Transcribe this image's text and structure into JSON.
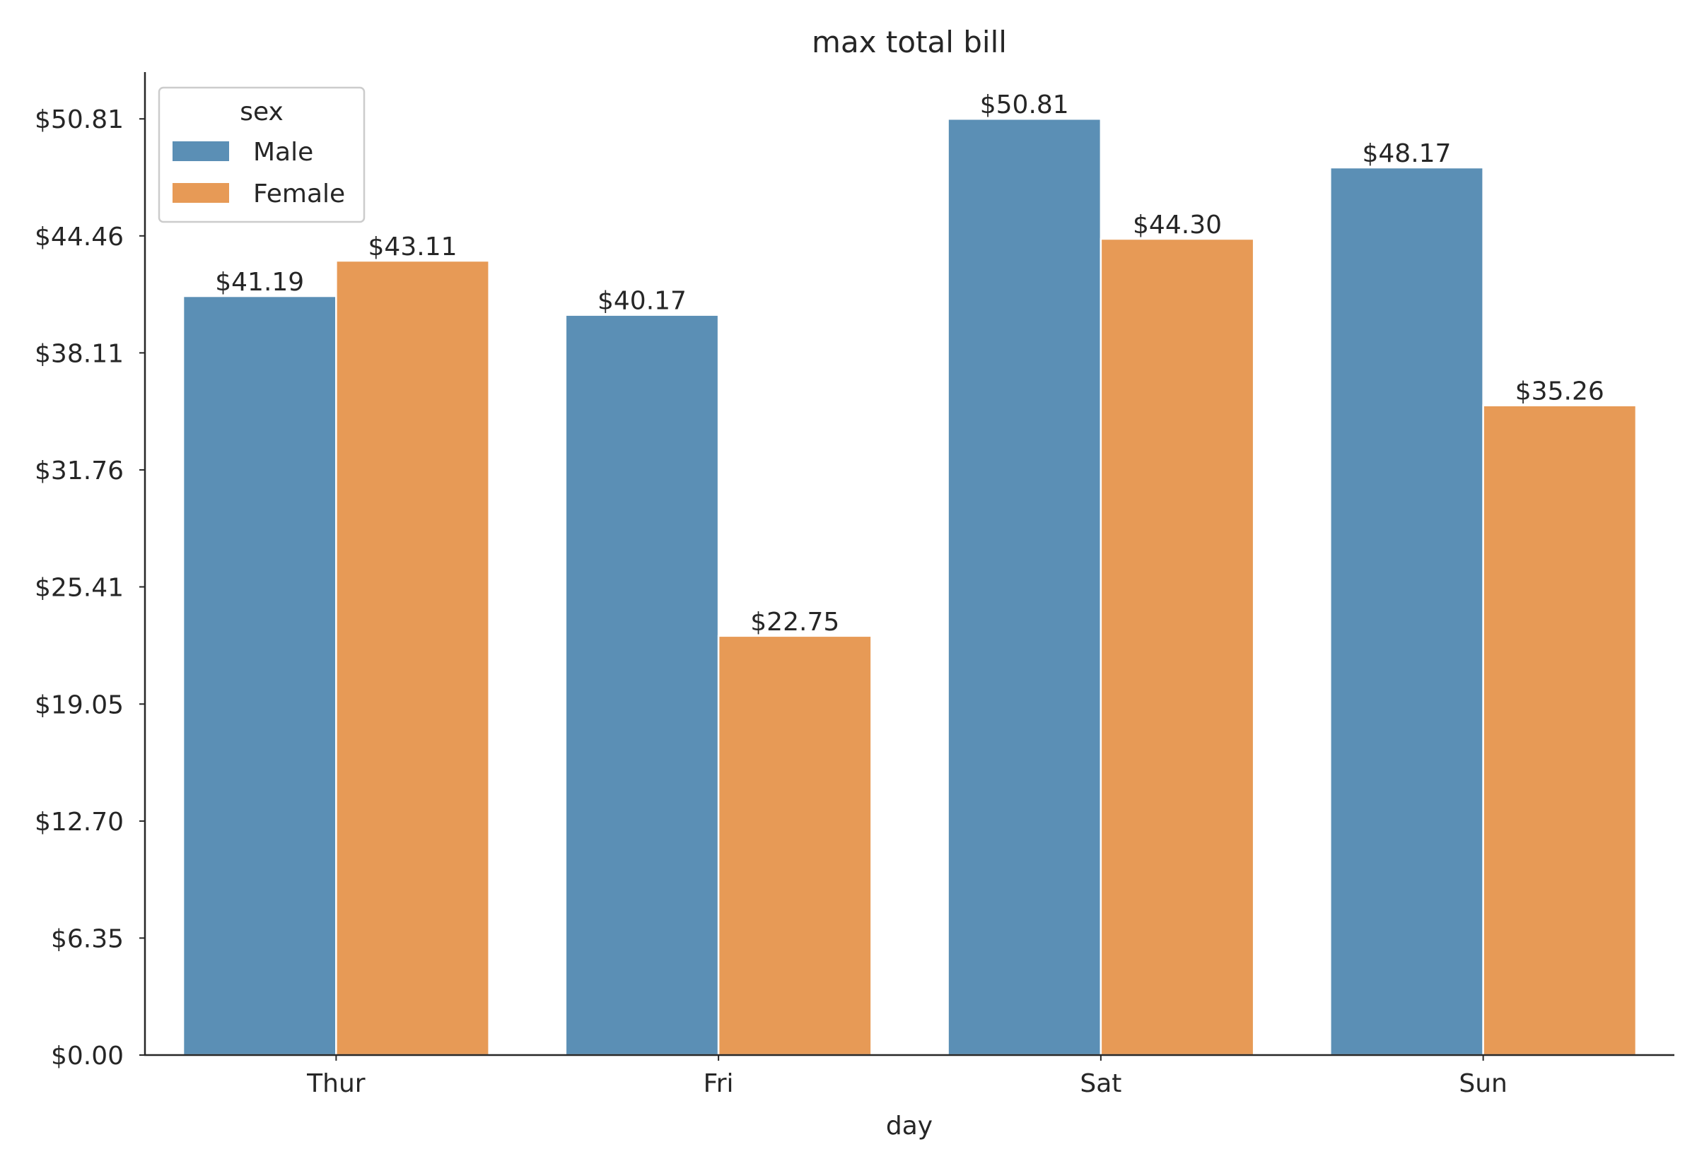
{
  "chart_data": {
    "type": "bar",
    "title": "max total bill",
    "xlabel": "day",
    "ylabel": "",
    "categories": [
      "Thur",
      "Fri",
      "Sat",
      "Sun"
    ],
    "series": [
      {
        "name": "Male",
        "color": "#5b8fb5",
        "values": [
          41.19,
          40.17,
          50.81,
          48.17
        ],
        "labels": [
          "$41.19",
          "$40.17",
          "$50.81",
          "$48.17"
        ]
      },
      {
        "name": "Female",
        "color": "#e79a56",
        "values": [
          43.11,
          22.75,
          44.3,
          35.26
        ],
        "labels": [
          "$43.11",
          "$22.75",
          "$44.30",
          "$35.26"
        ]
      }
    ],
    "ylim": [
      0,
      53.35
    ],
    "yticks": [
      0,
      6.35,
      12.7,
      19.05,
      25.41,
      31.76,
      38.11,
      44.46,
      50.81
    ],
    "ytick_labels": [
      "$0.00",
      "$6.35",
      "$12.70",
      "$19.05",
      "$25.41",
      "$31.76",
      "$38.11",
      "$44.46",
      "$50.81"
    ],
    "legend": {
      "title": "sex",
      "placement": "top-left"
    },
    "grid": false
  }
}
